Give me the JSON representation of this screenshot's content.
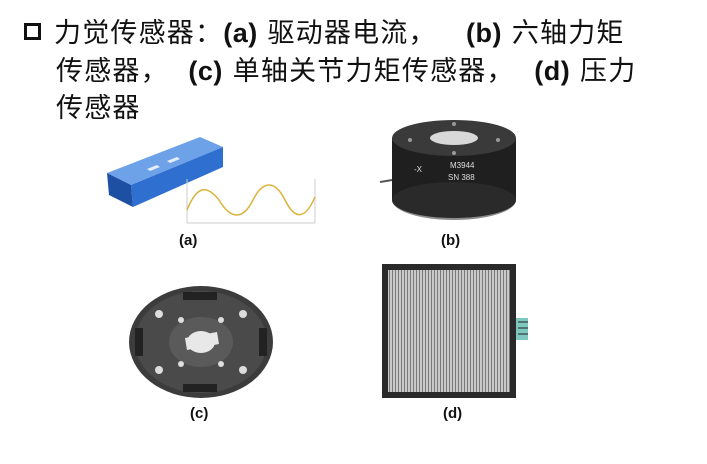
{
  "bullet": {
    "line1_a": "力觉传感器：",
    "line1_tag_a": "(a)",
    "line1_b": " 驱动器电流，",
    "line1_tag_b": "(b)",
    "line1_c": " 六轴力矩",
    "line2_a": "传感器，",
    "line2_tag_c": "(c)",
    "line2_b": " 单轴关节力矩传感器，",
    "line2_tag_d": "(d)",
    "line2_c": " 压力",
    "line3": "传感器"
  },
  "figures": {
    "a": {
      "caption": "(a)",
      "icon": "current-sensor-box-with-sine-wave"
    },
    "b": {
      "caption": "(b)",
      "icon": "six-axis-torque-sensor",
      "label_x": "-X",
      "model": "M3944",
      "serial": "SN 388"
    },
    "c": {
      "caption": "(c)",
      "icon": "joint-torque-sensor-disk"
    },
    "d": {
      "caption": "(d)",
      "icon": "pressure-sensor-pad"
    }
  },
  "colors": {
    "text": "#111111",
    "sensor_blue": "#2f6fd0",
    "wave_yellow": "#d9b43a",
    "metal_dark": "#2a2a2a",
    "pad_gray": "#b8b8b8"
  }
}
